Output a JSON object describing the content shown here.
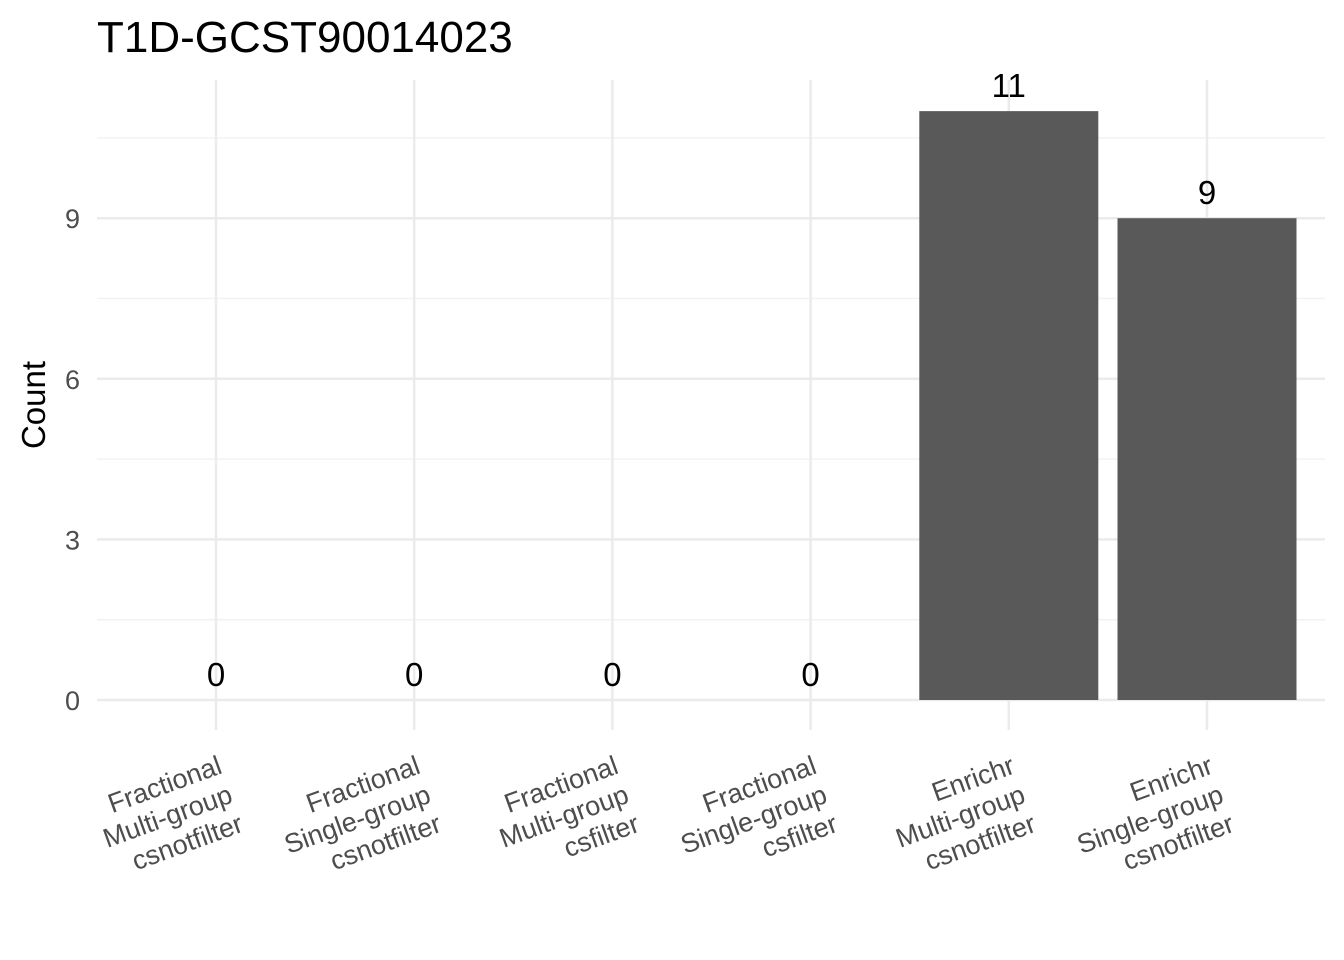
{
  "chart_data": {
    "type": "bar",
    "title": "T1D-GCST90014023",
    "xlabel": "",
    "ylabel": "Count",
    "categories": [
      [
        "Fractional",
        "Multi-group",
        "csnotfilter"
      ],
      [
        "Fractional",
        "Single-group",
        "csnotfilter"
      ],
      [
        "Fractional",
        "Multi-group",
        "csfilter"
      ],
      [
        "Fractional",
        "Single-group",
        "csfilter"
      ],
      [
        "Enrichr",
        "Multi-group",
        "csnotfilter"
      ],
      [
        "Enrichr",
        "Single-group",
        "csnotfilter"
      ]
    ],
    "values": [
      0,
      0,
      0,
      0,
      11,
      9
    ],
    "data_labels": [
      "0",
      "0",
      "0",
      "0",
      "11",
      "9"
    ],
    "yticks": [
      0,
      3,
      6,
      9
    ],
    "ylim": [
      -0.3,
      11.5
    ],
    "grid": true,
    "legend": "none",
    "colors": {
      "bar": "#595959",
      "grid_major": "#ebebeb",
      "grid_minor": "#f2f2f2",
      "tick_text": "#4d4d4d",
      "text": "#000000"
    }
  }
}
